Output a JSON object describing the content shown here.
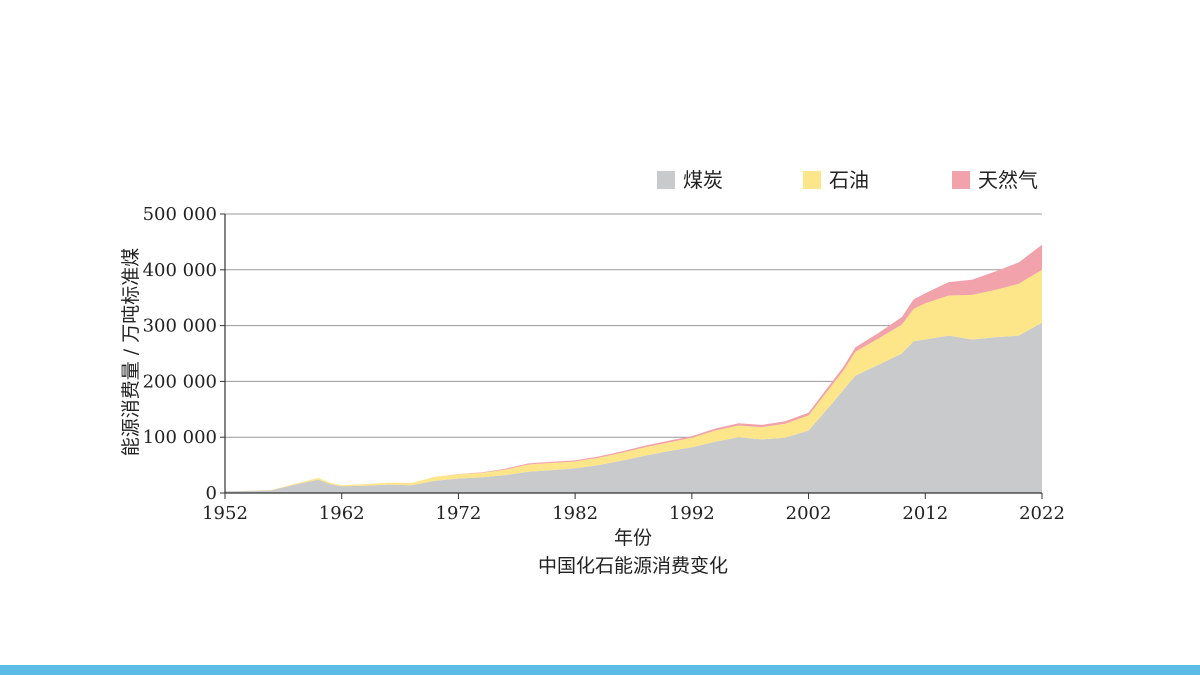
{
  "chart_data": {
    "type": "area",
    "stacked": true,
    "title": "中国化石能源消费变化",
    "xlabel": "年份",
    "ylabel": "能源消费量 / 万吨标准煤",
    "xlim": [
      1952,
      2022
    ],
    "ylim": [
      0,
      500000
    ],
    "x_ticks": [
      1952,
      1962,
      1972,
      1982,
      1992,
      2002,
      2012,
      2022
    ],
    "x_tick_labels": [
      "1952",
      "1962",
      "1972",
      "1982",
      "1992",
      "2002",
      "2012",
      "2022"
    ],
    "y_ticks": [
      0,
      100000,
      200000,
      300000,
      400000,
      500000
    ],
    "y_tick_labels": [
      "0",
      "100 000",
      "200 000",
      "300 000",
      "400 000",
      "500 000"
    ],
    "grid": "horizontal",
    "legend_position": "top-right",
    "colors": {
      "coal": "#c8cacb",
      "oil": "#fde68a",
      "gas": "#f1a2aa",
      "axis": "#333333",
      "grid": "#999999"
    },
    "x": [
      1952,
      1954,
      1956,
      1958,
      1960,
      1961,
      1962,
      1964,
      1966,
      1968,
      1970,
      1972,
      1974,
      1976,
      1978,
      1980,
      1982,
      1984,
      1986,
      1988,
      1990,
      1992,
      1994,
      1996,
      1998,
      2000,
      2002,
      2004,
      2005,
      2006,
      2008,
      2010,
      2011,
      2012,
      2014,
      2016,
      2018,
      2020,
      2022
    ],
    "series": [
      {
        "name": "煤炭",
        "values": [
          3000,
          3500,
          5000,
          15000,
          24000,
          16000,
          12000,
          13000,
          15000,
          14000,
          22000,
          26000,
          28000,
          32000,
          38000,
          41000,
          44000,
          50000,
          58000,
          67000,
          75000,
          82000,
          92000,
          100000,
          96000,
          99000,
          112000,
          160000,
          185000,
          210000,
          230000,
          250000,
          272000,
          275000,
          282000,
          275000,
          279000,
          282000,
          305000
        ]
      },
      {
        "name": "石油",
        "values": [
          300,
          400,
          500,
          1500,
          3000,
          2500,
          2000,
          3000,
          3500,
          4000,
          7000,
          7500,
          8000,
          10000,
          13000,
          13000,
          12500,
          13000,
          14000,
          15000,
          15500,
          17000,
          20000,
          21000,
          22000,
          25000,
          27000,
          33000,
          35000,
          43000,
          47000,
          52000,
          58000,
          65000,
          72000,
          80000,
          85000,
          93000,
          95000
        ]
      },
      {
        "name": "天然气",
        "values": [
          0,
          0,
          0,
          0,
          0,
          0,
          0,
          0,
          0,
          0,
          0,
          600,
          1000,
          1500,
          2000,
          2000,
          2000,
          2500,
          2500,
          3000,
          3000,
          3000,
          3500,
          4000,
          4000,
          4500,
          5000,
          6000,
          6500,
          8000,
          10000,
          13500,
          17000,
          18000,
          24000,
          27000,
          33000,
          38000,
          45000
        ]
      }
    ]
  }
}
